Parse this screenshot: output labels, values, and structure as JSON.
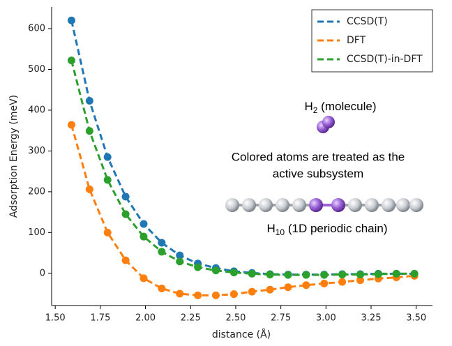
{
  "chart_data": {
    "type": "line",
    "x_label": "distance (Å)",
    "y_label": "Adsorption Energy (meV)",
    "x": [
      1.59,
      1.69,
      1.79,
      1.89,
      1.99,
      2.09,
      2.19,
      2.29,
      2.39,
      2.49,
      2.59,
      2.69,
      2.79,
      2.89,
      2.99,
      3.09,
      3.19,
      3.29,
      3.39,
      3.49
    ],
    "series": [
      {
        "name": "CCSD(T)",
        "color": "#1f77b4",
        "values": [
          620,
          423,
          285,
          188,
          121,
          75,
          44,
          24,
          13,
          5,
          1,
          -2,
          -3,
          -3,
          -3,
          -2,
          -2,
          -1,
          -1,
          -1
        ]
      },
      {
        "name": "DFT",
        "color": "#ff7f0e",
        "values": [
          364,
          206,
          100,
          32,
          -12,
          -37,
          -50,
          -54,
          -54,
          -51,
          -45,
          -40,
          -34,
          -29,
          -25,
          -21,
          -17,
          -13,
          -10,
          -6
        ]
      },
      {
        "name": "CCSD(T)-in-DFT",
        "color": "#2ca02c",
        "values": [
          522,
          349,
          229,
          145,
          90,
          53,
          29,
          15,
          7,
          2,
          -1,
          -3,
          -4,
          -4,
          -4,
          -3,
          -3,
          -2,
          -1,
          -1
        ]
      }
    ],
    "xlim": [
      1.48,
      3.59
    ],
    "ylim": [
      -79,
      653
    ],
    "xticks": [
      {
        "value": 1.5,
        "label": "1.50"
      },
      {
        "value": 1.75,
        "label": "1.75"
      },
      {
        "value": 2.0,
        "label": "2.00"
      },
      {
        "value": 2.25,
        "label": "2.25"
      },
      {
        "value": 2.5,
        "label": "2.50"
      },
      {
        "value": 2.75,
        "label": "2.75"
      },
      {
        "value": 3.0,
        "label": "3.00"
      },
      {
        "value": 3.25,
        "label": "3.25"
      },
      {
        "value": 3.5,
        "label": "3.50"
      }
    ],
    "yticks": [
      0,
      100,
      200,
      300,
      400,
      500,
      600
    ],
    "legend": "upper right",
    "annotations": {
      "molecule": {
        "base": "H",
        "sub": "2",
        "rest": " (molecule)"
      },
      "note": [
        "Colored atoms are treated as the",
        "active subsystem"
      ],
      "chain": {
        "base": "H",
        "sub": "10",
        "rest": " (1D periodic chain)"
      }
    }
  }
}
